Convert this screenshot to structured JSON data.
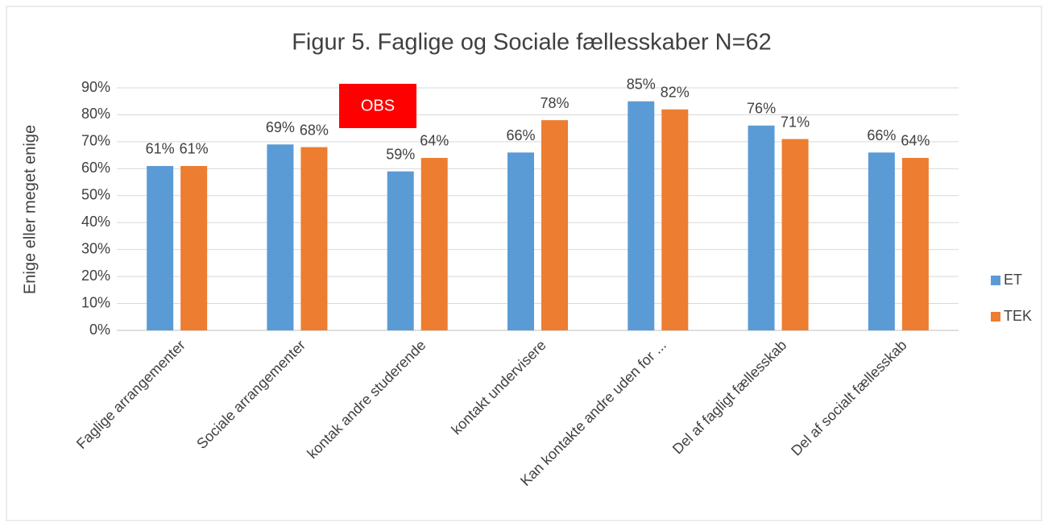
{
  "chart_data": {
    "type": "bar",
    "title": "Figur 5. Faglige og Sociale fællesskaber N=62",
    "y_label": "Enige eller meget enige",
    "categories": [
      "Faglige arrangementer",
      "Sociale arrangementer",
      "kontak andre studerende",
      "kontakt undervisere",
      "Kan kontakte andre uden for ...",
      "Del af fagligt fællesskab",
      "Del af socialt fællesskab"
    ],
    "series": [
      {
        "name": "ET",
        "color": "#5b9bd5",
        "values": [
          61,
          69,
          59,
          66,
          85,
          76,
          66
        ],
        "value_labels": [
          "61%",
          "69%",
          "59%",
          "66%",
          "85%",
          "76%",
          "66%"
        ]
      },
      {
        "name": "TEK",
        "color": "#ed7d31",
        "values": [
          61,
          68,
          64,
          78,
          82,
          71,
          64
        ],
        "value_labels": [
          "61%",
          "68%",
          "64%",
          "78%",
          "82%",
          "71%",
          "64%"
        ]
      }
    ],
    "ylim": [
      0,
      90
    ],
    "yticks": [
      {
        "value": 0,
        "label": "0%"
      },
      {
        "value": 10,
        "label": "10%"
      },
      {
        "value": 20,
        "label": "20%"
      },
      {
        "value": 30,
        "label": "30%"
      },
      {
        "value": 40,
        "label": "40%"
      },
      {
        "value": 50,
        "label": "50%"
      },
      {
        "value": 60,
        "label": "60%"
      },
      {
        "value": 70,
        "label": "70%"
      },
      {
        "value": 80,
        "label": "80%"
      },
      {
        "value": 90,
        "label": "90%"
      }
    ],
    "grid": true,
    "legend": "right",
    "annotations": [
      {
        "text": "OBS",
        "color": "#ff0000"
      }
    ]
  }
}
